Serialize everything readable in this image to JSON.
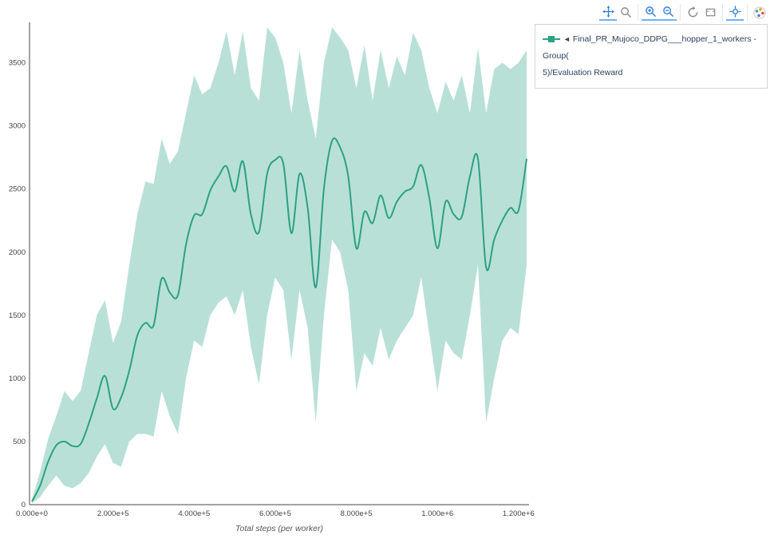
{
  "modebar": {
    "icons": [
      "pan-icon",
      "zoom-icon",
      "zoom-in-icon",
      "zoom-out-icon",
      "autoscale-icon",
      "reset-axes-icon",
      "spikelines-icon",
      "plotly-logo"
    ]
  },
  "legend": {
    "arrow": "◄",
    "label_line1": "Final_PR_Mujoco_DDPG___hopper_1_workers - Group(",
    "label_line2": "5)/Evaluation Reward",
    "color": "#2ba185"
  },
  "chart_data": {
    "type": "line",
    "title": "",
    "xlabel": "Total steps (per worker)",
    "ylabel": "",
    "legend_position": "top-right-outside",
    "grid": false,
    "xlim": [
      0,
      1220000
    ],
    "ylim": [
      0,
      3820
    ],
    "x_ticks": {
      "values": [
        0,
        200000,
        400000,
        600000,
        800000,
        1000000,
        1200000
      ],
      "labels": [
        "0.000e+0",
        "2.000e+5",
        "4.000e+5",
        "6.000e+5",
        "8.000e+5",
        "1.000e+6",
        "1.200e+6"
      ]
    },
    "y_ticks": [
      0,
      500,
      1000,
      1500,
      2000,
      2500,
      3000,
      3500
    ],
    "line_color": "#2ba185",
    "band_color": "#2ba185",
    "band_opacity": 0.33,
    "series": [
      {
        "name": "Final_PR_Mujoco_DDPG___hopper_1_workers - Group(5)/Evaluation Reward",
        "x": [
          0,
          20000,
          40000,
          60000,
          80000,
          100000,
          120000,
          140000,
          160000,
          180000,
          200000,
          220000,
          240000,
          260000,
          280000,
          300000,
          320000,
          340000,
          360000,
          380000,
          400000,
          420000,
          440000,
          460000,
          480000,
          500000,
          520000,
          540000,
          560000,
          580000,
          600000,
          620000,
          640000,
          660000,
          680000,
          700000,
          720000,
          740000,
          760000,
          780000,
          800000,
          820000,
          840000,
          860000,
          880000,
          900000,
          920000,
          940000,
          960000,
          980000,
          1000000,
          1020000,
          1040000,
          1060000,
          1080000,
          1100000,
          1120000,
          1140000,
          1160000,
          1180000,
          1200000,
          1220000
        ],
        "mean": [
          25,
          150,
          340,
          470,
          500,
          465,
          480,
          640,
          840,
          1020,
          760,
          850,
          1060,
          1340,
          1440,
          1420,
          1790,
          1680,
          1660,
          2060,
          2290,
          2300,
          2490,
          2600,
          2680,
          2480,
          2720,
          2300,
          2160,
          2620,
          2730,
          2700,
          2150,
          2620,
          2350,
          1720,
          2500,
          2880,
          2830,
          2600,
          2030,
          2320,
          2230,
          2450,
          2270,
          2400,
          2480,
          2520,
          2690,
          2430,
          2030,
          2400,
          2300,
          2280,
          2600,
          2740,
          1880,
          2100,
          2250,
          2350,
          2330,
          2740
        ],
        "upper": [
          40,
          260,
          520,
          700,
          900,
          820,
          900,
          1200,
          1500,
          1620,
          1280,
          1450,
          1900,
          2300,
          2560,
          2540,
          2900,
          2700,
          2800,
          3100,
          3400,
          3250,
          3300,
          3500,
          3750,
          3400,
          3750,
          3300,
          3200,
          3780,
          3700,
          3500,
          3100,
          3600,
          3200,
          2900,
          3500,
          3780,
          3700,
          3600,
          3300,
          3640,
          3200,
          3600,
          3300,
          3550,
          3400,
          3740,
          3600,
          3300,
          3100,
          3350,
          3200,
          3400,
          3100,
          3620,
          3100,
          3450,
          3500,
          3450,
          3500,
          3600
        ],
        "lower": [
          10,
          60,
          150,
          230,
          150,
          130,
          170,
          250,
          380,
          480,
          330,
          300,
          500,
          560,
          560,
          540,
          900,
          700,
          560,
          1000,
          1300,
          1250,
          1500,
          1600,
          1650,
          1500,
          1700,
          1250,
          950,
          1500,
          1800,
          1700,
          1150,
          1700,
          1400,
          650,
          1500,
          2100,
          2000,
          1700,
          900,
          1200,
          1100,
          1400,
          1150,
          1300,
          1400,
          1500,
          1800,
          1350,
          900,
          1300,
          1200,
          1150,
          1500,
          1900,
          650,
          1000,
          1300,
          1400,
          1350,
          1900
        ]
      }
    ]
  }
}
